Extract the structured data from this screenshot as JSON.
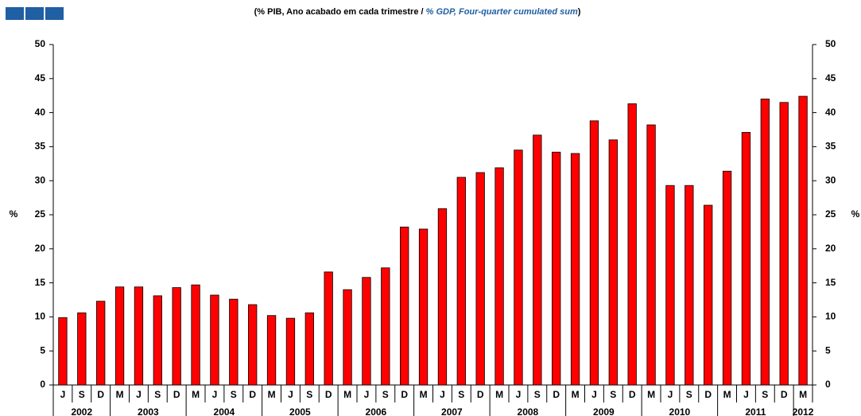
{
  "chart_data": {
    "type": "bar",
    "title": [
      "(% PIB, Ano acabado em cada trimestre / ",
      "% GDP, Four-quarter cumulated sum",
      ")"
    ],
    "ylabel": "%",
    "y2label": "%",
    "categories": [
      "J",
      "S",
      "D",
      "M",
      "J",
      "S",
      "D",
      "M",
      "J",
      "S",
      "D",
      "M",
      "J",
      "S",
      "D",
      "M",
      "J",
      "S",
      "D",
      "M",
      "J",
      "S",
      "D",
      "M",
      "J",
      "S",
      "D",
      "M",
      "J",
      "S",
      "D",
      "M",
      "J",
      "S",
      "D",
      "M",
      "J",
      "S",
      "D",
      "M"
    ],
    "x_groups": [
      {
        "label": "2002",
        "count": 3
      },
      {
        "label": "2003",
        "count": 4
      },
      {
        "label": "2004",
        "count": 4
      },
      {
        "label": "2005",
        "count": 4
      },
      {
        "label": "2006",
        "count": 4
      },
      {
        "label": "2007",
        "count": 4
      },
      {
        "label": "2008",
        "count": 4
      },
      {
        "label": "2009",
        "count": 4
      },
      {
        "label": "2010",
        "count": 4
      },
      {
        "label": "2011",
        "count": 4
      },
      {
        "label": "2012",
        "count": 1
      }
    ],
    "values": [
      9.9,
      10.6,
      12.3,
      14.4,
      14.4,
      13.1,
      14.3,
      14.7,
      13.2,
      12.6,
      11.8,
      10.2,
      9.8,
      10.6,
      16.6,
      14.0,
      15.8,
      17.2,
      23.2,
      22.9,
      25.9,
      30.5,
      31.2,
      31.9,
      34.5,
      36.7,
      34.2,
      34.0,
      38.8,
      36.0,
      41.3,
      38.2,
      29.3,
      29.3,
      26.4,
      31.4,
      37.1,
      42.0,
      41.5,
      42.4
    ],
    "color": "#ff0000",
    "ylim": [
      0,
      50
    ],
    "yticks": [
      0,
      5,
      10,
      15,
      20,
      25,
      30,
      35,
      40,
      45,
      50
    ],
    "y2lim": [
      0,
      50
    ],
    "y2ticks": [
      0,
      5,
      10,
      15,
      20,
      25,
      30,
      35,
      40,
      45,
      50
    ]
  }
}
